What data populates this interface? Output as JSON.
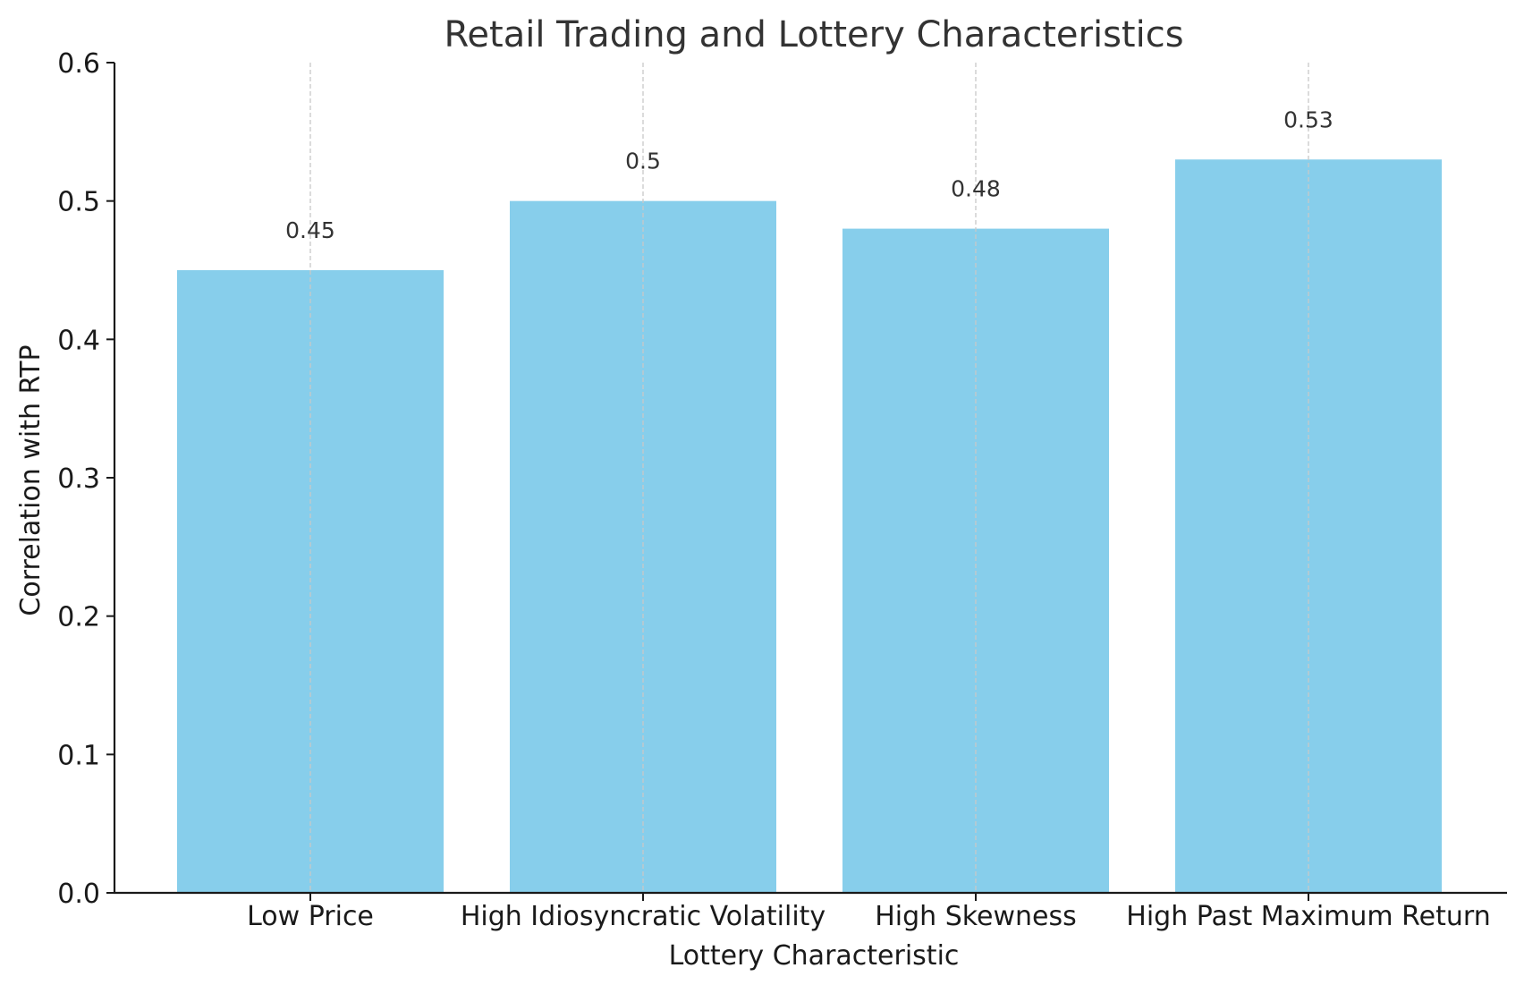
{
  "chart_data": {
    "type": "bar",
    "title": "Retail Trading and Lottery Characteristics",
    "xlabel": "Lottery Characteristic",
    "ylabel": "Correlation with RTP",
    "categories": [
      "Low Price",
      "High Idiosyncratic Volatility",
      "High Skewness",
      "High Past Maximum Return"
    ],
    "values": [
      0.45,
      0.5,
      0.48,
      0.53
    ],
    "data_labels": [
      "0.45",
      "0.5",
      "0.48",
      "0.53"
    ],
    "ylim": [
      0,
      0.6
    ],
    "yticks": [
      0.0,
      0.1,
      0.2,
      0.3,
      0.4,
      0.5,
      0.6
    ],
    "ytick_labels": [
      "0.0",
      "0.1",
      "0.2",
      "0.3",
      "0.4",
      "0.5",
      "0.6"
    ],
    "bar_color": "#87CEEB",
    "grid": "x-axis dashed",
    "grid_color": "#c8c8c8"
  }
}
